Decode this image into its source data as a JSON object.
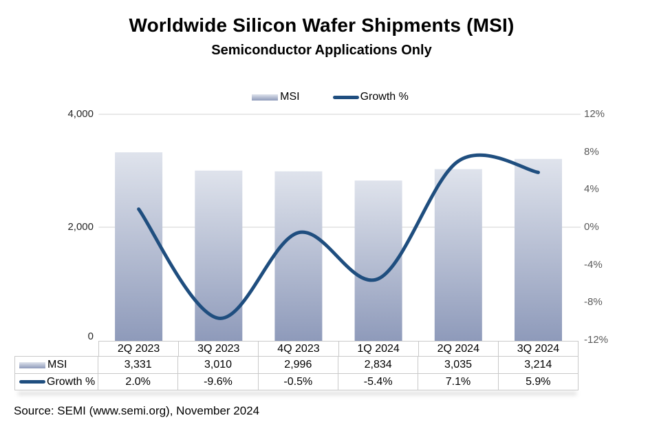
{
  "title": "Worldwide Silicon Wafer Shipments (MSI)",
  "subtitle": "Semiconductor Applications Only",
  "legend": {
    "msi_label": "MSI",
    "growth_label": "Growth %"
  },
  "axes": {
    "left": [
      "4,000",
      "2,000",
      "0"
    ],
    "right": [
      "12%",
      "8%",
      "4%",
      "0%",
      "-4%",
      "-8%",
      "-12%"
    ]
  },
  "table": {
    "quarters": [
      "2Q 2023",
      "3Q 2023",
      "4Q 2023",
      "1Q 2024",
      "2Q 2024",
      "3Q 2024"
    ],
    "msi": [
      "3,331",
      "3,010",
      "2,996",
      "2,834",
      "3,035",
      "3,214"
    ],
    "growth": [
      "2.0%",
      "-9.6%",
      "-0.5%",
      "-5.4%",
      "7.1%",
      "5.9%"
    ]
  },
  "source": "Source: SEMI (www.semi.org), November 2024",
  "colors": {
    "line": "#1f4e7f",
    "bar_gradient_top": "#dfe3ec",
    "bar_gradient_bottom": "#8e9aba",
    "gridline": "#d9d9d9",
    "table_border": "#c9c9c9",
    "right_axis_text": "#595959"
  },
  "chart_data": {
    "type": "combo",
    "title": "Worldwide Silicon Wafer Shipments (MSI)",
    "subtitle": "Semiconductor Applications Only",
    "categories": [
      "2Q 2023",
      "3Q 2023",
      "4Q 2023",
      "1Q 2024",
      "2Q 2024",
      "3Q 2024"
    ],
    "series": [
      {
        "name": "MSI",
        "type": "bar",
        "axis": "left",
        "values": [
          3331,
          3010,
          2996,
          2834,
          3035,
          3214
        ]
      },
      {
        "name": "Growth %",
        "type": "line",
        "axis": "right",
        "values": [
          2.0,
          -9.6,
          -0.5,
          -5.4,
          7.1,
          5.9
        ]
      }
    ],
    "left_axis": {
      "label": "",
      "min": 0,
      "max": 4000,
      "ticks": [
        0,
        2000,
        4000
      ]
    },
    "right_axis": {
      "label": "",
      "min": -12,
      "max": 12,
      "ticks": [
        -12,
        -8,
        -4,
        0,
        4,
        8,
        12
      ],
      "unit": "%"
    },
    "legend_position": "top",
    "grid": true,
    "line_smoothed": true
  }
}
